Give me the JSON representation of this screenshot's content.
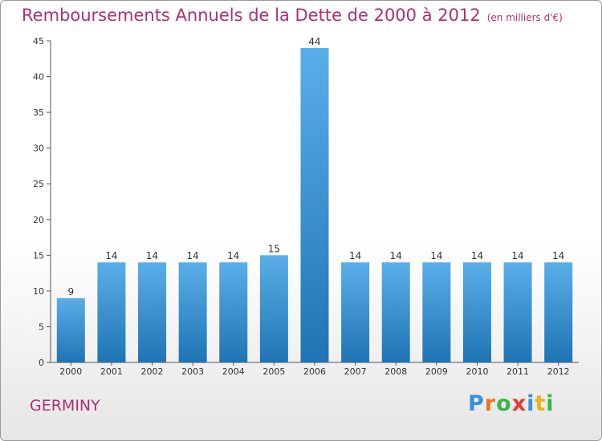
{
  "title": "Remboursements Annuels de la Dette de 2000 à 2012",
  "subtitle": "(en milliers d'€)",
  "city": "GERMINY",
  "logo": {
    "letters": [
      "P",
      "r",
      "o",
      "x",
      "i",
      "t",
      "i"
    ],
    "colors": [
      "#3a8fd8",
      "#e8761a",
      "#3ab54a",
      "#e63a2e",
      "#3a8fd8",
      "#e8b21a",
      "#3ab54a"
    ]
  },
  "colors": {
    "title": "#b0306f",
    "bar_top": "#5aaee8",
    "bar_bottom": "#1f74b4"
  },
  "chart_data": {
    "type": "bar",
    "title": "Remboursements Annuels de la Dette de 2000 à 2012",
    "subtitle": "(en milliers d'€)",
    "xlabel": "",
    "ylabel": "",
    "categories": [
      "2000",
      "2001",
      "2002",
      "2003",
      "2004",
      "2005",
      "2006",
      "2007",
      "2008",
      "2009",
      "2010",
      "2011",
      "2012"
    ],
    "values": [
      9,
      14,
      14,
      14,
      14,
      15,
      44,
      14,
      14,
      14,
      14,
      14,
      14
    ],
    "ylim": [
      0,
      45
    ],
    "yticks": [
      0,
      5,
      10,
      15,
      20,
      25,
      30,
      35,
      40,
      45
    ],
    "grid": false,
    "legend": "none"
  }
}
